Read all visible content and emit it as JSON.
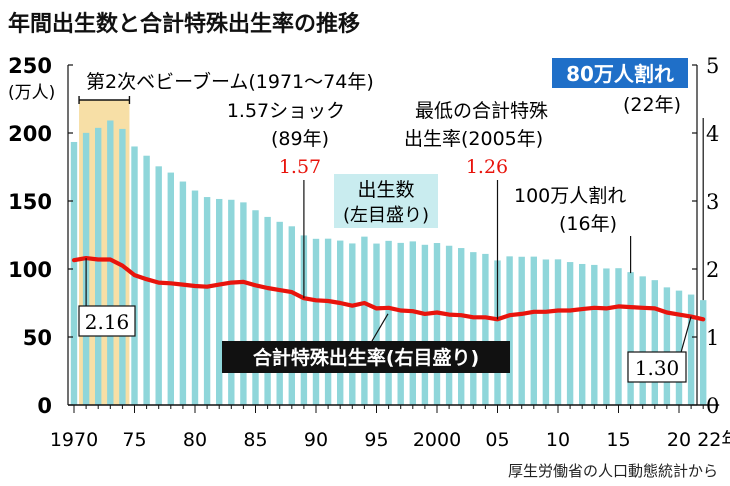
{
  "chart_data": {
    "type": "bar",
    "title": "年間出生数と合計特殊出生率の推移",
    "source": "厚生労働省の人口動態統計から",
    "left_axis": {
      "unit": "(万人)",
      "ylim": [
        0,
        250
      ],
      "ticks": [
        "0",
        "50",
        "100",
        "150",
        "200",
        "250"
      ]
    },
    "right_axis": {
      "ylim": [
        0,
        5
      ],
      "ticks": [
        "0",
        "1",
        "2",
        "3",
        "4",
        "5"
      ]
    },
    "x_tick_labels": [
      {
        "year": 1970,
        "label": "1970"
      },
      {
        "year": 1975,
        "label": "75"
      },
      {
        "year": 1980,
        "label": "80"
      },
      {
        "year": 1985,
        "label": "85"
      },
      {
        "year": 1990,
        "label": "90"
      },
      {
        "year": 1995,
        "label": "95"
      },
      {
        "year": 2000,
        "label": "2000"
      },
      {
        "year": 2005,
        "label": "05"
      },
      {
        "year": 2010,
        "label": "10"
      },
      {
        "year": 2015,
        "label": "15"
      },
      {
        "year": 2020,
        "label": "20"
      },
      {
        "year": 2022,
        "label": "22年"
      }
    ],
    "years": [
      1970,
      1971,
      1972,
      1973,
      1974,
      1975,
      1976,
      1977,
      1978,
      1979,
      1980,
      1981,
      1982,
      1983,
      1984,
      1985,
      1986,
      1987,
      1988,
      1989,
      1990,
      1991,
      1992,
      1993,
      1994,
      1995,
      1996,
      1997,
      1998,
      1999,
      2000,
      2001,
      2002,
      2003,
      2004,
      2005,
      2006,
      2007,
      2008,
      2009,
      2010,
      2011,
      2012,
      2013,
      2014,
      2015,
      2016,
      2017,
      2018,
      2019,
      2020,
      2021,
      2022
    ],
    "series": [
      {
        "name": "出生数",
        "axis": "left",
        "color": "#8fd6da",
        "values": [
          193.4,
          200.1,
          203.8,
          209.2,
          203.0,
          190.1,
          183.3,
          175.5,
          170.9,
          164.3,
          157.7,
          152.9,
          151.5,
          150.9,
          149.0,
          143.2,
          138.3,
          134.7,
          131.4,
          124.7,
          122.2,
          122.3,
          120.9,
          118.8,
          123.8,
          118.7,
          120.7,
          119.2,
          120.3,
          117.8,
          119.1,
          117.1,
          115.4,
          112.4,
          111.1,
          106.3,
          109.3,
          109.0,
          109.1,
          107.0,
          107.1,
          105.1,
          103.7,
          103.0,
          100.4,
          100.6,
          97.7,
          94.6,
          91.8,
          86.5,
          84.1,
          81.2,
          77.1
        ]
      },
      {
        "name": "合計特殊出生率",
        "axis": "right",
        "color": "#e8140c",
        "values": [
          2.13,
          2.16,
          2.14,
          2.14,
          2.05,
          1.91,
          1.85,
          1.8,
          1.79,
          1.77,
          1.75,
          1.74,
          1.77,
          1.8,
          1.81,
          1.76,
          1.72,
          1.69,
          1.66,
          1.57,
          1.54,
          1.53,
          1.5,
          1.46,
          1.5,
          1.42,
          1.43,
          1.39,
          1.38,
          1.34,
          1.36,
          1.33,
          1.32,
          1.29,
          1.29,
          1.26,
          1.32,
          1.34,
          1.37,
          1.37,
          1.39,
          1.39,
          1.41,
          1.43,
          1.42,
          1.45,
          1.44,
          1.43,
          1.42,
          1.36,
          1.33,
          1.3,
          1.26
        ]
      }
    ],
    "highlight_band": {
      "from": 1971,
      "to": 1974,
      "color": "#f7dfa6"
    },
    "annotations": {
      "baby_boom": "第2次ベビーブーム(1971〜74年)",
      "shock_title": "1.57ショック",
      "shock_year": "(89年)",
      "shock_value": "1.57",
      "lowest_line1": "最低の合計特殊",
      "lowest_line2": "出生率(2005年)",
      "lowest_value": "1.26",
      "births_label_1": "出生数",
      "births_label_2": "(左目盛り)",
      "million_line1": "100万人割れ",
      "million_line2": "(16年)",
      "eighty_label": "80万人割れ",
      "eighty_year": "(22年)",
      "tfr_label": "合計特殊出生率(右目盛り)",
      "start_value": "2.16",
      "end_value": "1.30"
    }
  }
}
